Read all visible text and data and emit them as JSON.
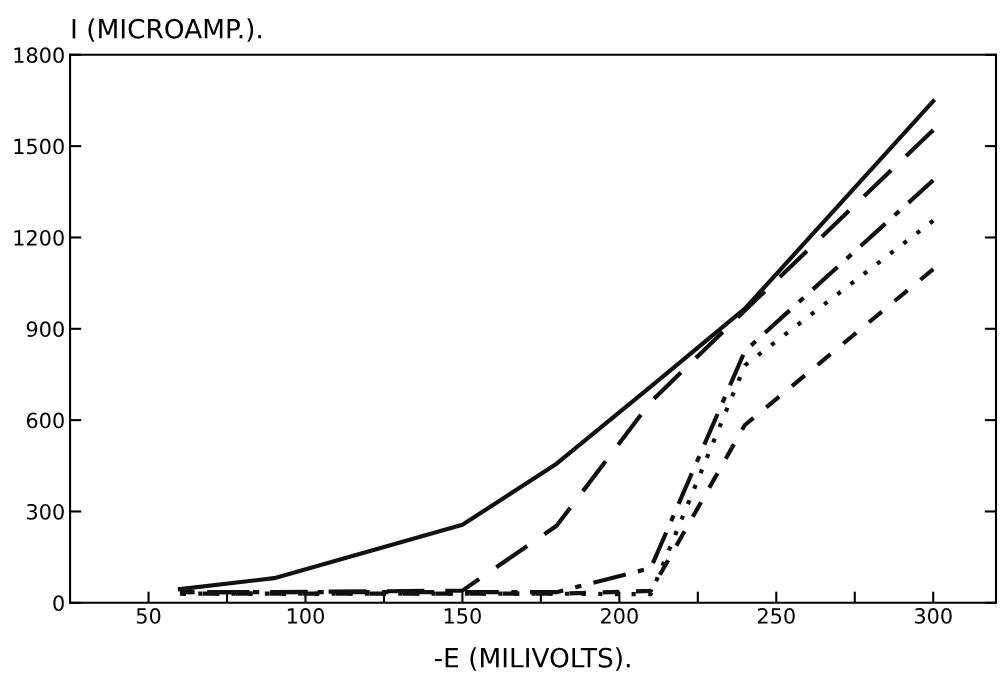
{
  "chart_data": {
    "type": "line",
    "xlabel": "-E (MILIVOLTS).",
    "ylabel": "I (MICROAMP.).",
    "x": [
      60,
      90,
      150,
      180,
      210,
      240,
      300
    ],
    "series": [
      {
        "color": "#111111",
        "line_style": "solid",
        "values": [
          45,
          81,
          256,
          457,
          710,
          966,
          1648
        ]
      },
      {
        "color": "#111111",
        "line_style": "dashed",
        "values": [
          35,
          35,
          40,
          253,
          660,
          960,
          1553
        ]
      },
      {
        "color": "#111111",
        "line_style": "dashdot",
        "values": [
          35,
          35,
          35,
          35,
          114,
          827,
          1388
        ]
      },
      {
        "color": "#111111",
        "line_style": "dotted",
        "values": [
          30,
          30,
          30,
          30,
          28,
          780,
          1255
        ]
      },
      {
        "color": "#111111",
        "line_style": "shortdash",
        "values": [
          30,
          30,
          30,
          30,
          39,
          584,
          1096
        ]
      }
    ],
    "xlim": [
      25,
      320
    ],
    "ylim": [
      0,
      1800
    ],
    "xticks": [
      50,
      {
        "value": 75,
        "label": null
      },
      100,
      {
        "value": 125,
        "label": null
      },
      150,
      {
        "value": 175,
        "label": null
      },
      200,
      {
        "value": 225,
        "label": null
      },
      250,
      {
        "value": 275,
        "label": null
      },
      300
    ],
    "yticks": [
      0,
      300,
      600,
      900,
      1200,
      1500,
      1800
    ],
    "grid": false,
    "legend": false,
    "marker": "none"
  }
}
